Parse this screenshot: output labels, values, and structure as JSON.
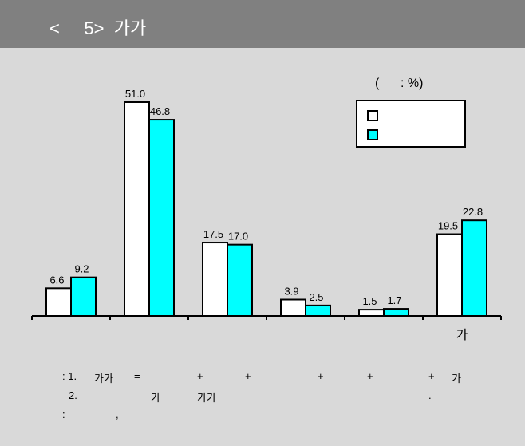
{
  "header": {
    "title": "<     5>  가가"
  },
  "chart_data": {
    "type": "bar",
    "unit_label": "(      : %)",
    "categories": [
      "",
      "",
      "",
      "",
      "",
      "가"
    ],
    "series": [
      {
        "name": "",
        "color": "#ffffff",
        "values": [
          6.6,
          51.0,
          17.5,
          3.9,
          1.5,
          19.5
        ]
      },
      {
        "name": "",
        "color": "#00ffff",
        "values": [
          9.2,
          46.8,
          17.0,
          2.5,
          1.7,
          22.8
        ]
      }
    ],
    "ylim": [
      0,
      51.0
    ],
    "legend_position": "top-right",
    "grid": false
  },
  "footnotes": {
    "line1": [
      ": 1.",
      "가가",
      "=",
      "+",
      "+",
      "+",
      "+",
      "+",
      "가"
    ],
    "line2": [
      "2.",
      "가",
      "가가",
      "."
    ],
    "line3": [
      ":",
      ","
    ]
  }
}
